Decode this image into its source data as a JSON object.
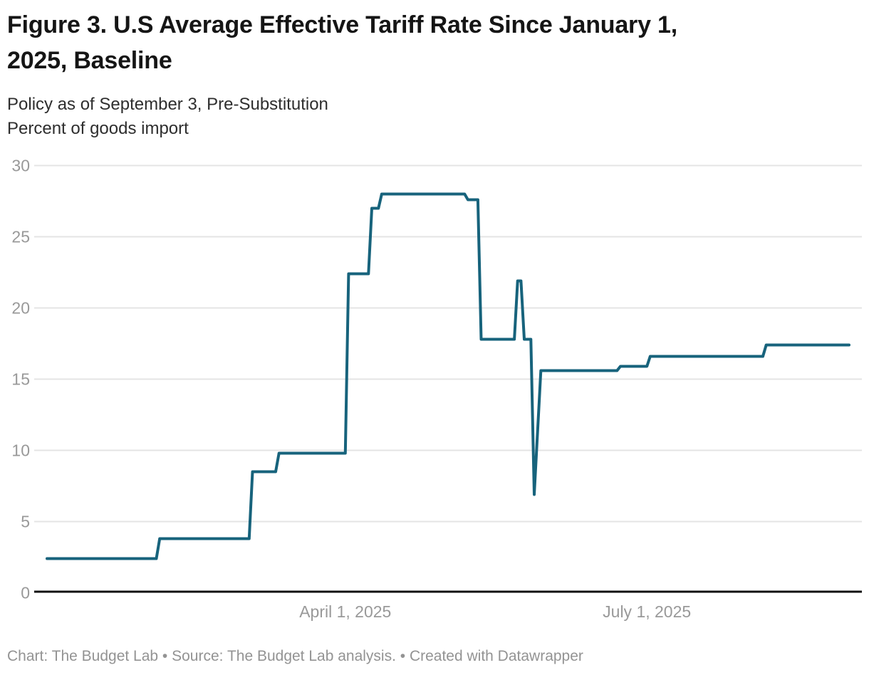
{
  "header": {
    "title_line1": "Figure 3. U.S Average Effective Tariff Rate Since January 1,",
    "title_line2": "2025, Baseline",
    "subtitle_line1": "Policy as of September 3, Pre-Substitution",
    "subtitle_line2": "Percent of goods import"
  },
  "footer": {
    "text": "Chart: The Budget Lab • Source: The Budget Lab analysis. • Created with Datawrapper"
  },
  "colors": {
    "line": "#17637c",
    "axis": "#111111",
    "gridline": "#e4e4e4",
    "tick_label": "#999999"
  },
  "chart_data": {
    "type": "line",
    "title": "Figure 3. U.S Average Effective Tariff Rate Since January 1, 2025, Baseline",
    "subtitle": "Policy as of September 3, Pre-Substitution",
    "ylabel": "Percent of goods import",
    "xlabel": "",
    "ylim": [
      0,
      30
    ],
    "x_domain": [
      "2025-01-01",
      "2025-08-31"
    ],
    "grid": "horizontal",
    "legend_position": "none",
    "y_ticks": [
      0,
      5,
      10,
      15,
      20,
      25,
      30
    ],
    "x_ticks": [
      {
        "date": "2025-04-01",
        "label": "April 1, 2025"
      },
      {
        "date": "2025-07-01",
        "label": "July 1, 2025"
      }
    ],
    "series": [
      {
        "name": "U.S. average effective tariff rate",
        "points": [
          [
            "2025-01-01",
            2.4
          ],
          [
            "2025-02-03",
            2.4
          ],
          [
            "2025-02-04",
            3.8
          ],
          [
            "2025-03-03",
            3.8
          ],
          [
            "2025-03-04",
            8.5
          ],
          [
            "2025-03-11",
            8.5
          ],
          [
            "2025-03-12",
            9.8
          ],
          [
            "2025-04-01",
            9.8
          ],
          [
            "2025-04-02",
            22.4
          ],
          [
            "2025-04-08",
            22.4
          ],
          [
            "2025-04-09",
            27.0
          ],
          [
            "2025-04-11",
            27.0
          ],
          [
            "2025-04-12",
            28.0
          ],
          [
            "2025-05-07",
            28.0
          ],
          [
            "2025-05-08",
            27.6
          ],
          [
            "2025-05-11",
            27.6
          ],
          [
            "2025-05-12",
            17.8
          ],
          [
            "2025-05-22",
            17.8
          ],
          [
            "2025-05-23",
            21.9
          ],
          [
            "2025-05-24",
            21.9
          ],
          [
            "2025-05-25",
            17.8
          ],
          [
            "2025-05-27",
            17.8
          ],
          [
            "2025-05-28",
            6.9
          ],
          [
            "2025-05-30",
            15.6
          ],
          [
            "2025-06-22",
            15.6
          ],
          [
            "2025-06-23",
            15.9
          ],
          [
            "2025-07-01",
            15.9
          ],
          [
            "2025-07-02",
            16.6
          ],
          [
            "2025-08-05",
            16.6
          ],
          [
            "2025-08-06",
            17.4
          ],
          [
            "2025-08-31",
            17.4
          ]
        ]
      }
    ]
  }
}
